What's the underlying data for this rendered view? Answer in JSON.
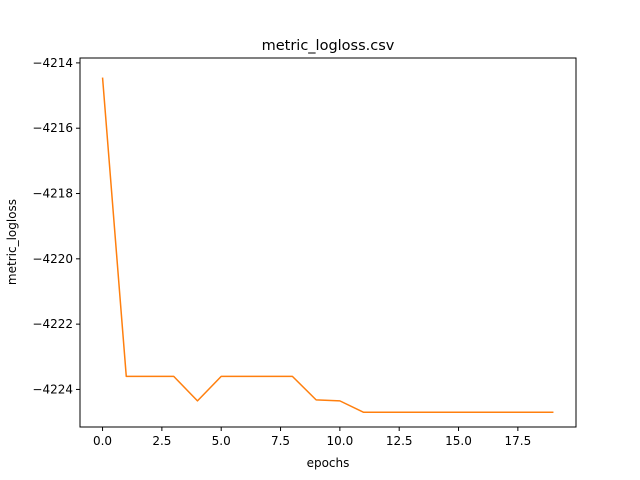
{
  "chart_data": {
    "type": "line",
    "title": "metric_logloss.csv",
    "xlabel": "epochs",
    "ylabel": "metric_logloss",
    "xlim": [
      -0.95,
      19.95
    ],
    "ylim": [
      -4225.15,
      -4213.85
    ],
    "xticks": [
      0.0,
      2.5,
      5.0,
      7.5,
      10.0,
      12.5,
      15.0,
      17.5
    ],
    "xtick_labels": [
      "0.0",
      "2.5",
      "5.0",
      "7.5",
      "10.0",
      "12.5",
      "15.0",
      "17.5"
    ],
    "yticks": [
      -4214,
      -4216,
      -4218,
      -4220,
      -4222,
      -4224
    ],
    "ytick_labels": [
      "−4214",
      "−4216",
      "−4218",
      "−4220",
      "−4222",
      "−4224"
    ],
    "grid": false,
    "series": [
      {
        "color": "#ff7f0e",
        "x": [
          0,
          1,
          2,
          3,
          4,
          5,
          6,
          7,
          8,
          9,
          10,
          11,
          12,
          13,
          14,
          15,
          16,
          17,
          18,
          19
        ],
        "values": [
          -4214.45,
          -4223.6,
          -4223.6,
          -4223.6,
          -4224.35,
          -4223.6,
          -4223.6,
          -4223.6,
          -4223.6,
          -4224.32,
          -4224.35,
          -4224.7,
          -4224.7,
          -4224.7,
          -4224.7,
          -4224.7,
          -4224.7,
          -4224.7,
          -4224.7,
          -4224.7
        ]
      }
    ]
  }
}
